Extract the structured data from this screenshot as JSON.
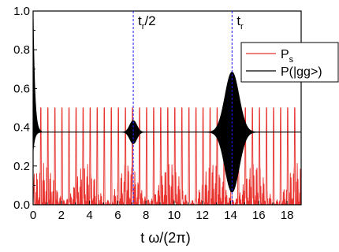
{
  "chart_data": {
    "type": "line",
    "title": "",
    "xlabel": "t ω/(2π)",
    "ylabel": "",
    "xlim": [
      0,
      19
    ],
    "ylim": [
      0,
      1.0
    ],
    "x_ticks": [
      0,
      2,
      4,
      6,
      8,
      10,
      12,
      14,
      16,
      18
    ],
    "y_ticks": [
      0.0,
      0.2,
      0.4,
      0.6,
      0.8,
      1.0
    ],
    "x_tick_labels": [
      "0",
      "2",
      "4",
      "6",
      "8",
      "10",
      "12",
      "14",
      "16",
      "18"
    ],
    "y_tick_labels": [
      "0.0",
      "0.2",
      "0.4",
      "0.6",
      "0.8",
      "1.0"
    ],
    "grid": false,
    "legend_position": "top-right",
    "series": [
      {
        "name": "P_s",
        "legend_main": "P",
        "legend_sub": "s",
        "color": "#e8332f",
        "description_values": {
          "oscillation_period": 0.5,
          "peak_value": 0.5,
          "minimum_value": 0.0
        }
      },
      {
        "name": "P(|gg>)",
        "legend_main": "P(|gg>)",
        "legend_sub": "",
        "color": "#000000",
        "description_values": {
          "mean_value": 0.375,
          "initial_value": 1.0,
          "revival_times": [
            7.1,
            14.1
          ],
          "revival_half_amplitudes": [
            0.06,
            0.31
          ],
          "revival_widths": [
            0.35,
            0.7
          ]
        }
      }
    ],
    "annotations": [
      {
        "text_main": "t",
        "text_sub": "r",
        "text_suffix": "/2",
        "x": 7.1,
        "line_color": "#1a1aff"
      },
      {
        "text_main": "t",
        "text_sub": "r",
        "text_suffix": "",
        "x": 14.1,
        "line_color": "#1a1aff"
      }
    ]
  }
}
